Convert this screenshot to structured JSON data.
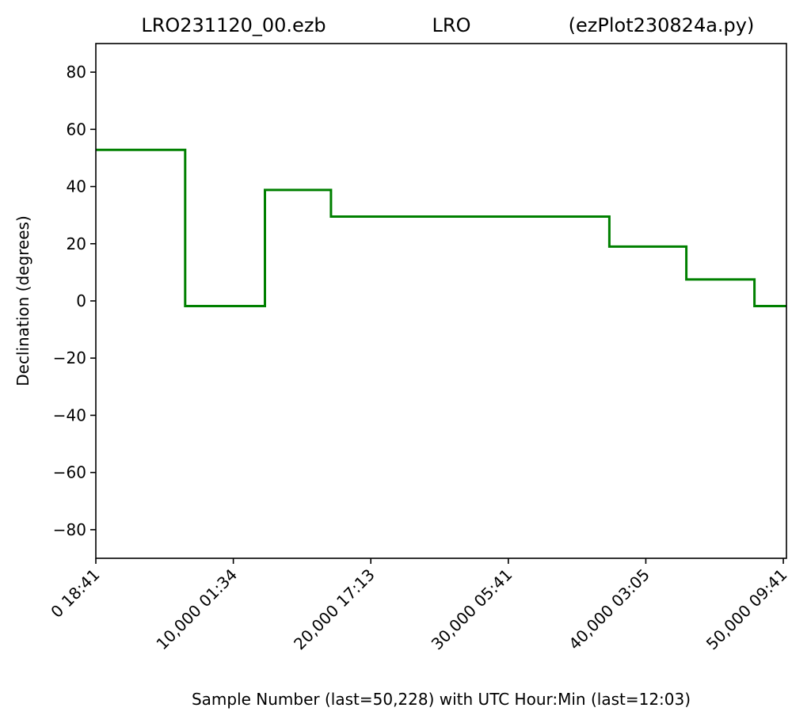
{
  "chart_data": {
    "type": "line",
    "title_parts": {
      "left": "LRO231120_00.ezb",
      "center": "LRO",
      "right": "(ezPlot230824a.py)"
    },
    "xlabel": "Sample Number (last=50,228) with UTC Hour:Min (last=12:03)",
    "ylabel": "Declination (degrees)",
    "xlim": [
      0,
      50228
    ],
    "ylim": [
      -90,
      90
    ],
    "x_ticks": [
      {
        "value": 0,
        "label": "0  18:41"
      },
      {
        "value": 10000,
        "label": "10,000  01:34"
      },
      {
        "value": 20000,
        "label": "20,000  17:13"
      },
      {
        "value": 30000,
        "label": "30,000  05:41"
      },
      {
        "value": 40000,
        "label": "40,000  03:05"
      },
      {
        "value": 50000,
        "label": "50,000  09:41"
      }
    ],
    "y_ticks": [
      {
        "value": 80,
        "label": "80"
      },
      {
        "value": 60,
        "label": "60"
      },
      {
        "value": 40,
        "label": "40"
      },
      {
        "value": 20,
        "label": "20"
      },
      {
        "value": 0,
        "label": "0"
      },
      {
        "value": -20,
        "label": "−20"
      },
      {
        "value": -40,
        "label": "−40"
      },
      {
        "value": -60,
        "label": "−60"
      },
      {
        "value": -80,
        "label": "−80"
      }
    ],
    "grid": false,
    "series": [
      {
        "color": "#008000",
        "step_points": [
          {
            "x": 0,
            "y": 52.8
          },
          {
            "x": 6500,
            "y": 52.8
          },
          {
            "x": 6500,
            "y": -1.8
          },
          {
            "x": 12300,
            "y": -1.8
          },
          {
            "x": 12300,
            "y": 38.8
          },
          {
            "x": 17100,
            "y": 38.8
          },
          {
            "x": 17100,
            "y": 29.5
          },
          {
            "x": 37350,
            "y": 29.5
          },
          {
            "x": 37350,
            "y": 19.0
          },
          {
            "x": 42950,
            "y": 19.0
          },
          {
            "x": 42950,
            "y": 7.5
          },
          {
            "x": 47900,
            "y": 7.5
          },
          {
            "x": 47900,
            "y": -1.8
          },
          {
            "x": 50228,
            "y": -1.8
          }
        ]
      }
    ]
  }
}
